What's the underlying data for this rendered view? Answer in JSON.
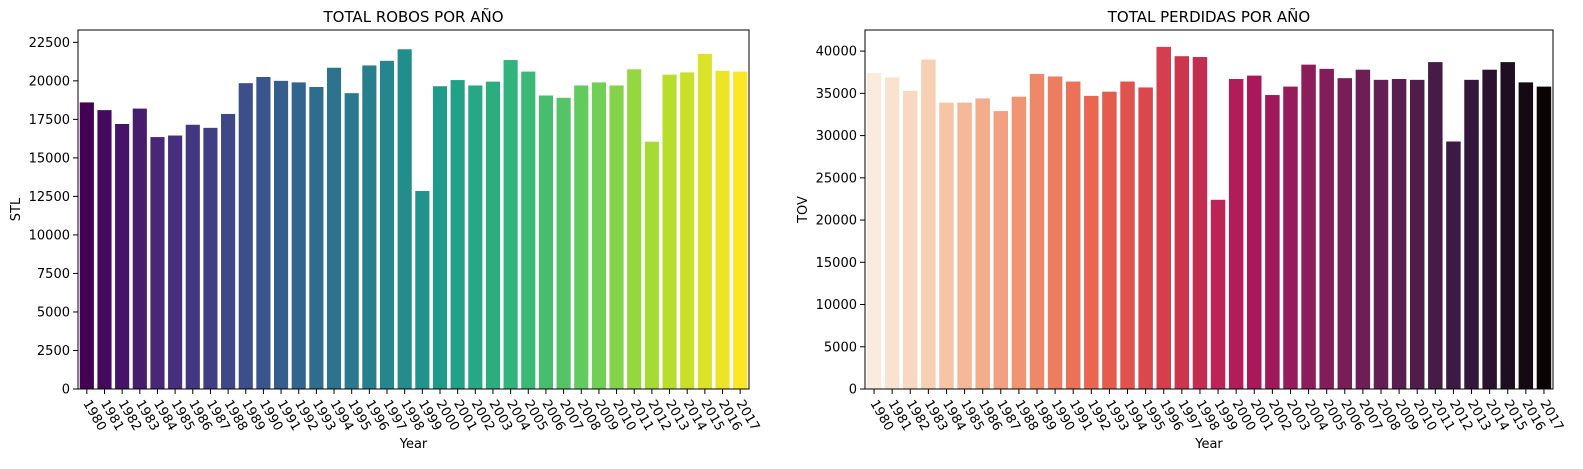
{
  "chart_data": [
    {
      "type": "bar",
      "title": "TOTAL ROBOS POR AÑO",
      "xlabel": "Year",
      "ylabel": "STL",
      "ylim": [
        0,
        23300
      ],
      "yticks": [
        0,
        2500,
        5000,
        7500,
        10000,
        12500,
        15000,
        17500,
        20000,
        22500
      ],
      "palette": "viridis",
      "categories": [
        "1980",
        "1981",
        "1982",
        "1983",
        "1984",
        "1985",
        "1986",
        "1987",
        "1988",
        "1989",
        "1990",
        "1991",
        "1992",
        "1993",
        "1994",
        "1995",
        "1996",
        "1997",
        "1998",
        "1999",
        "2000",
        "2001",
        "2002",
        "2003",
        "2004",
        "2005",
        "2006",
        "2007",
        "2008",
        "2009",
        "2010",
        "2011",
        "2012",
        "2013",
        "2014",
        "2015",
        "2016",
        "2017"
      ],
      "values": [
        18600,
        18100,
        17200,
        18200,
        16350,
        16450,
        17150,
        16950,
        17850,
        19850,
        20250,
        20000,
        19900,
        19600,
        20850,
        19200,
        21000,
        21300,
        22050,
        12850,
        19650,
        20050,
        19700,
        19950,
        21350,
        20600,
        19050,
        18900,
        19700,
        19900,
        19700,
        20750,
        16050,
        20400,
        20550,
        21750,
        20650,
        20600
      ]
    },
    {
      "type": "bar",
      "title": "TOTAL PERDIDAS POR AÑO",
      "xlabel": "Year",
      "ylabel": "TOV",
      "ylim": [
        0,
        42500
      ],
      "yticks": [
        0,
        5000,
        10000,
        15000,
        20000,
        25000,
        30000,
        35000,
        40000
      ],
      "palette": "rocket_r",
      "categories": [
        "1980",
        "1981",
        "1982",
        "1983",
        "1984",
        "1985",
        "1986",
        "1987",
        "1988",
        "1989",
        "1990",
        "1991",
        "1992",
        "1993",
        "1994",
        "1995",
        "1996",
        "1997",
        "1998",
        "1999",
        "2000",
        "2001",
        "2002",
        "2003",
        "2004",
        "2005",
        "2006",
        "2007",
        "2008",
        "2009",
        "2010",
        "2011",
        "2012",
        "2013",
        "2014",
        "2015",
        "2016",
        "2017"
      ],
      "values": [
        37400,
        36900,
        35300,
        39000,
        33900,
        33900,
        34400,
        32900,
        34600,
        37300,
        37000,
        36400,
        34700,
        35200,
        36400,
        35700,
        40500,
        39400,
        39300,
        22400,
        36700,
        37100,
        34800,
        35800,
        38400,
        37900,
        36800,
        37800,
        36600,
        36700,
        36600,
        38700,
        29300,
        36600,
        37800,
        38700,
        36300,
        35800
      ]
    }
  ]
}
